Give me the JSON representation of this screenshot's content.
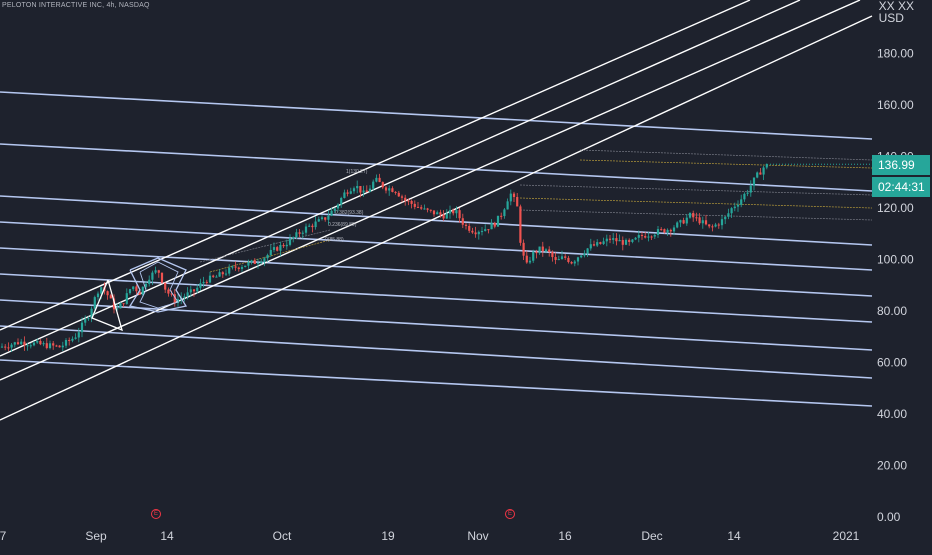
{
  "header": {
    "symbol_line": "PELOTON INTERACTIVE INC, 4h, NASDAQ",
    "currency_line1": "XX XX",
    "currency_line2": "USD"
  },
  "price_axis": {
    "ticks": [
      "180.00",
      "160.00",
      "140.00",
      "120.00",
      "100.00",
      "80.00",
      "60.00",
      "40.00",
      "20.00",
      "0.00"
    ],
    "last_price": "136.99",
    "countdown": "02:44:31"
  },
  "time_axis": {
    "ticks": [
      "7",
      "Sep",
      "14",
      "Oct",
      "19",
      "Nov",
      "16",
      "Dec",
      "14",
      "2021"
    ]
  },
  "event_markers": {
    "first": "E",
    "second": "E"
  },
  "fib_labels": {
    "top": "1(130.27)",
    "mid1": "0.382(93.38)",
    "mid2": "0.236(89.89)",
    "bottom": "0(85.88)"
  },
  "colors": {
    "background": "#1e222d",
    "up": "#26a69a",
    "down": "#ef5350",
    "trend_white": "#ffffff",
    "trend_blue": "#b5c7f0",
    "grid": "#2a2e39"
  },
  "chart_data": {
    "type": "candlestick",
    "title": "PELOTON INTERACTIVE INC, 4h, NASDAQ",
    "x": [
      "7",
      "Sep",
      "14",
      "Oct",
      "19",
      "Nov",
      "16",
      "Dec",
      "14",
      "2021"
    ],
    "price_path": [
      [
        0,
        66
      ],
      [
        20,
        68
      ],
      [
        40,
        67
      ],
      [
        60,
        66
      ],
      [
        75,
        70
      ],
      [
        88,
        78
      ],
      [
        100,
        90
      ],
      [
        108,
        86
      ],
      [
        116,
        80
      ],
      [
        124,
        84
      ],
      [
        132,
        90
      ],
      [
        140,
        87
      ],
      [
        148,
        93
      ],
      [
        158,
        96
      ],
      [
        166,
        88
      ],
      [
        175,
        84
      ],
      [
        185,
        86
      ],
      [
        195,
        88
      ],
      [
        205,
        92
      ],
      [
        215,
        93
      ],
      [
        225,
        95
      ],
      [
        235,
        97
      ],
      [
        245,
        98
      ],
      [
        255,
        99
      ],
      [
        265,
        101
      ],
      [
        275,
        104
      ],
      [
        285,
        106
      ],
      [
        295,
        109
      ],
      [
        305,
        112
      ],
      [
        315,
        114
      ],
      [
        325,
        116
      ],
      [
        335,
        120
      ],
      [
        345,
        126
      ],
      [
        355,
        129
      ],
      [
        365,
        125
      ],
      [
        375,
        131
      ],
      [
        385,
        128
      ],
      [
        395,
        127
      ],
      [
        405,
        123
      ],
      [
        415,
        121
      ],
      [
        425,
        119
      ],
      [
        435,
        118
      ],
      [
        445,
        117
      ],
      [
        455,
        119
      ],
      [
        465,
        113
      ],
      [
        475,
        111
      ],
      [
        485,
        112
      ],
      [
        495,
        114
      ],
      [
        502,
        118
      ],
      [
        510,
        126
      ],
      [
        517,
        121
      ],
      [
        521,
        105
      ],
      [
        526,
        97
      ],
      [
        532,
        102
      ],
      [
        540,
        104
      ],
      [
        548,
        103
      ],
      [
        556,
        99
      ],
      [
        564,
        101
      ],
      [
        572,
        99
      ],
      [
        580,
        102
      ],
      [
        590,
        105
      ],
      [
        600,
        106
      ],
      [
        610,
        108
      ],
      [
        620,
        107
      ],
      [
        630,
        106
      ],
      [
        640,
        109
      ],
      [
        650,
        110
      ],
      [
        660,
        111
      ],
      [
        670,
        112
      ],
      [
        680,
        114
      ],
      [
        690,
        117
      ],
      [
        700,
        115
      ],
      [
        710,
        112
      ],
      [
        718,
        114
      ],
      [
        725,
        116
      ],
      [
        732,
        120
      ],
      [
        740,
        123
      ],
      [
        748,
        127
      ],
      [
        756,
        132
      ],
      [
        764,
        136
      ],
      [
        770,
        137
      ]
    ],
    "y_range": [
      0,
      210
    ],
    "last_price": 136.99,
    "grid": false,
    "legend": "none"
  }
}
